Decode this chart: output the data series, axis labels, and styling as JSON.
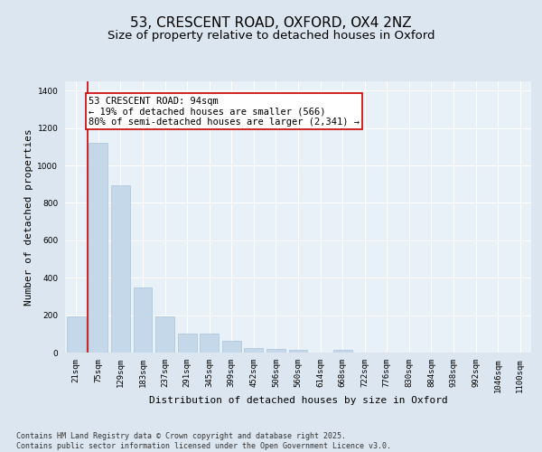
{
  "title": "53, CRESCENT ROAD, OXFORD, OX4 2NZ",
  "subtitle": "Size of property relative to detached houses in Oxford",
  "xlabel": "Distribution of detached houses by size in Oxford",
  "ylabel": "Number of detached properties",
  "categories": [
    "21sqm",
    "75sqm",
    "129sqm",
    "183sqm",
    "237sqm",
    "291sqm",
    "345sqm",
    "399sqm",
    "452sqm",
    "506sqm",
    "560sqm",
    "614sqm",
    "668sqm",
    "722sqm",
    "776sqm",
    "830sqm",
    "884sqm",
    "938sqm",
    "992sqm",
    "1046sqm",
    "1100sqm"
  ],
  "values": [
    195,
    1120,
    895,
    350,
    195,
    100,
    100,
    65,
    25,
    20,
    15,
    0,
    15,
    0,
    0,
    0,
    0,
    0,
    0,
    0,
    0
  ],
  "bar_color": "#c5d8ea",
  "bar_edge_color": "#aac4d8",
  "vertical_line_x": 0.5,
  "vertical_line_color": "#cc0000",
  "annotation_text": "53 CRESCENT ROAD: 94sqm\n← 19% of detached houses are smaller (566)\n80% of semi-detached houses are larger (2,341) →",
  "annotation_box_color": "#ffffff",
  "annotation_box_edge_color": "#cc0000",
  "ylim": [
    0,
    1450
  ],
  "yticks": [
    0,
    200,
    400,
    600,
    800,
    1000,
    1200,
    1400
  ],
  "bg_color": "#dce6f0",
  "plot_bg_color": "#e8f0f8",
  "footer_text": "Contains HM Land Registry data © Crown copyright and database right 2025.\nContains public sector information licensed under the Open Government Licence v3.0.",
  "title_fontsize": 11,
  "subtitle_fontsize": 9.5,
  "axis_label_fontsize": 8,
  "tick_fontsize": 6.5,
  "annotation_fontsize": 7.5,
  "footer_fontsize": 6
}
